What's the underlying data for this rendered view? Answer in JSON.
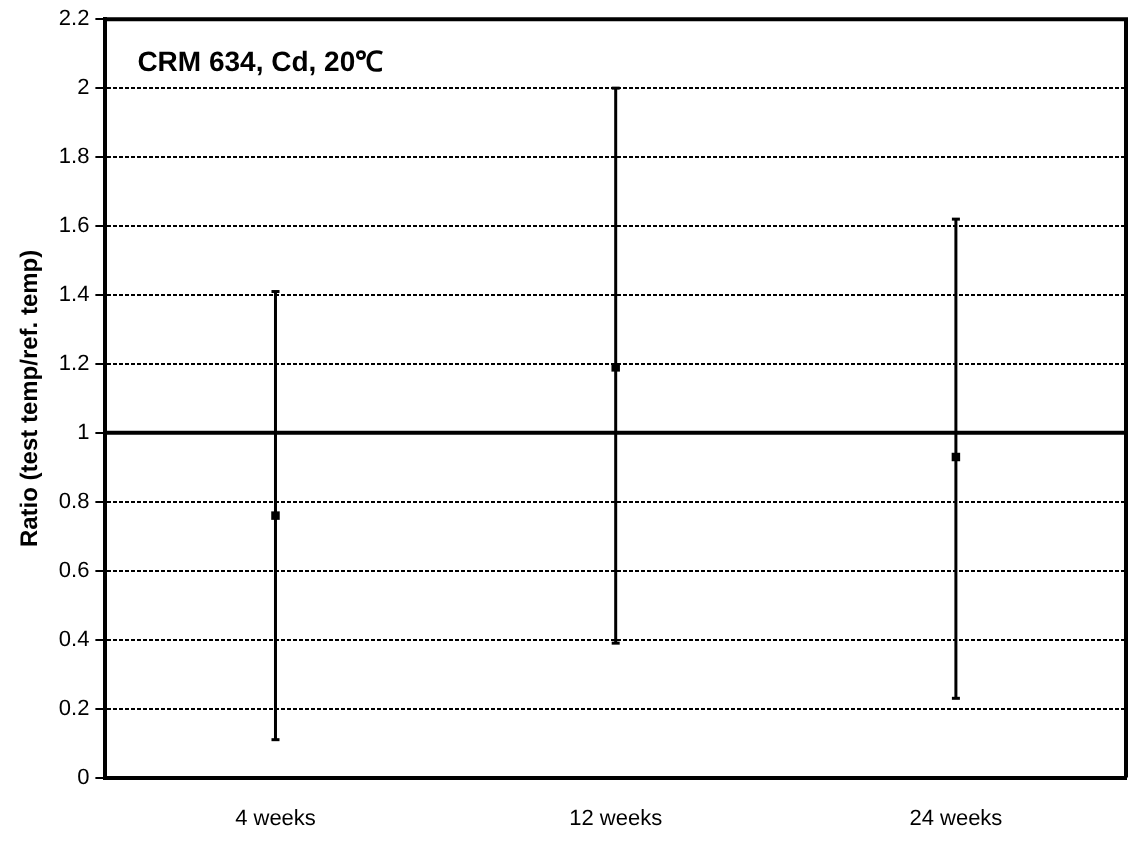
{
  "chart_data": {
    "type": "scatter",
    "title": "CRM 634, Cd, 20℃",
    "ylabel": "Ratio (test temp/ref. temp)",
    "categories": [
      "4 weeks",
      "12 weeks",
      "24 weeks"
    ],
    "values": [
      0.76,
      1.19,
      0.93
    ],
    "errors": [
      [
        0.11,
        1.41
      ],
      [
        0.39,
        2.0
      ],
      [
        0.23,
        1.62
      ]
    ],
    "color": "#000000",
    "marker": "square",
    "ylim": [
      0,
      2.2
    ],
    "yticks": [
      0,
      0.2,
      0.4,
      0.6,
      0.8,
      1,
      1.2,
      1.4,
      1.6,
      1.8,
      2,
      2.2
    ],
    "ref_lines": [
      {
        "axis": "y",
        "value": 1,
        "color": "#000000",
        "line_style": "solid"
      }
    ],
    "grid": "y",
    "legend": false
  }
}
